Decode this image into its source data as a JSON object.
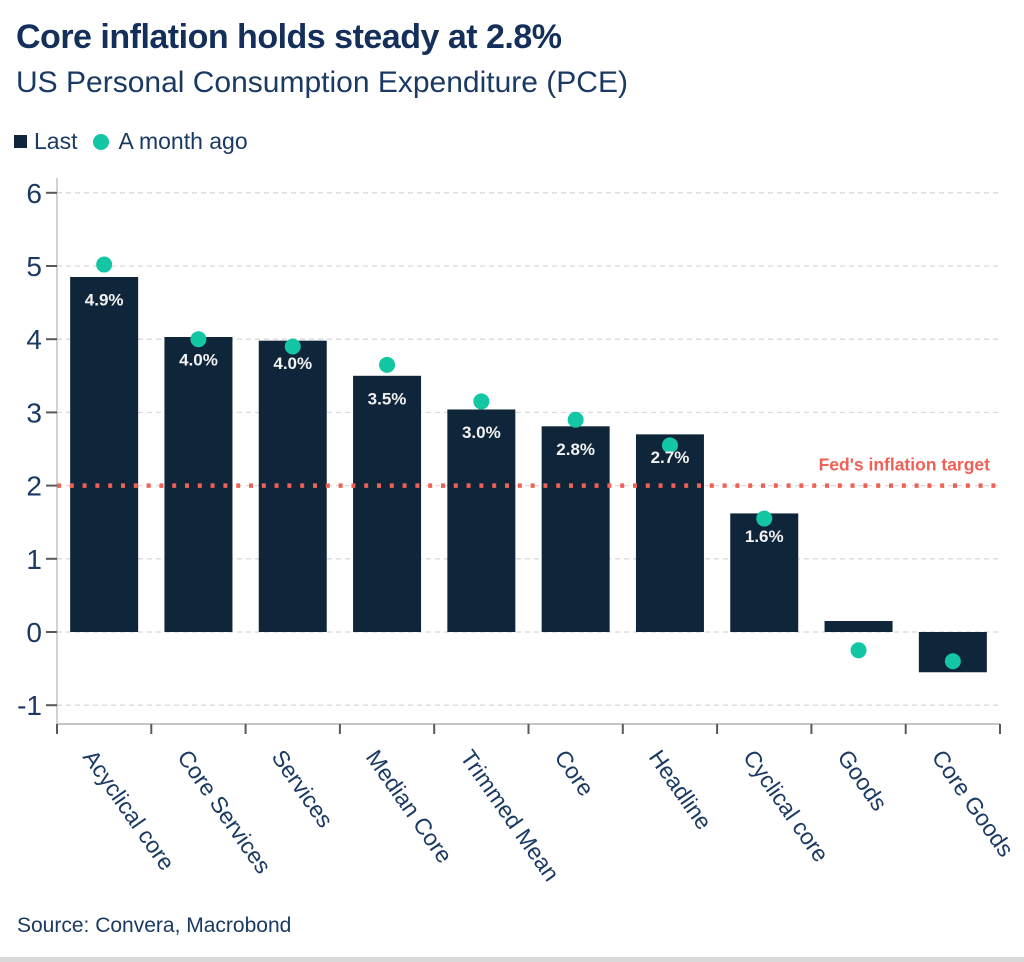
{
  "header": {
    "title": "Core inflation holds steady at 2.8%",
    "subtitle": "US Personal Consumption Expenditure (PCE)"
  },
  "legend": [
    {
      "label": "Last",
      "marker": "square",
      "color": "#0f2539"
    },
    {
      "label": "A month ago",
      "marker": "circle",
      "color": "#13c6a4"
    }
  ],
  "chart_data": {
    "type": "bar",
    "title": "Core inflation holds steady at 2.8%",
    "subtitle": "US Personal Consumption Expenditure (PCE)",
    "categories": [
      "Acyclical core",
      "Core Services",
      "Services",
      "Median Core",
      "Trimmed Mean",
      "Core",
      "Headline",
      "Cyclical core",
      "Goods",
      "Core Goods"
    ],
    "series": [
      {
        "name": "Last",
        "type": "bar",
        "color": "#0f2539",
        "values": [
          4.85,
          4.03,
          3.98,
          3.5,
          3.04,
          2.81,
          2.7,
          1.62,
          0.15,
          -0.55
        ],
        "data_labels": [
          "4.9%",
          "4.0%",
          "4.0%",
          "3.5%",
          "3.0%",
          "2.8%",
          "2.7%",
          "1.6%",
          "",
          ""
        ]
      },
      {
        "name": "A month ago",
        "type": "scatter",
        "color": "#13c6a4",
        "values": [
          5.02,
          4.0,
          3.9,
          3.65,
          3.15,
          2.9,
          2.55,
          1.55,
          -0.25,
          -0.4
        ]
      }
    ],
    "ylim": [
      -1,
      6
    ],
    "yticks": [
      6,
      5,
      4,
      3,
      2,
      1,
      0,
      -1
    ],
    "grid": "horizontal-dashed",
    "legend_position": "top-left",
    "target_line": {
      "value": 2,
      "label": "Fed's inflation target",
      "color": "#ee6157"
    }
  },
  "footer": {
    "source": "Source: Convera, Macrobond"
  },
  "colors": {
    "bar_navy": "#0f2539",
    "dot_teal": "#13c6a4",
    "target_salmon": "#ee6157",
    "title_navy": "#14305a",
    "text_navy": "#1b3a63",
    "grid_gray": "#d9d9d9",
    "axis_gray": "#c6c6c6",
    "tick_gray": "#595959",
    "bar_label_white": "#f2f2f2",
    "background": "#ffffff"
  }
}
